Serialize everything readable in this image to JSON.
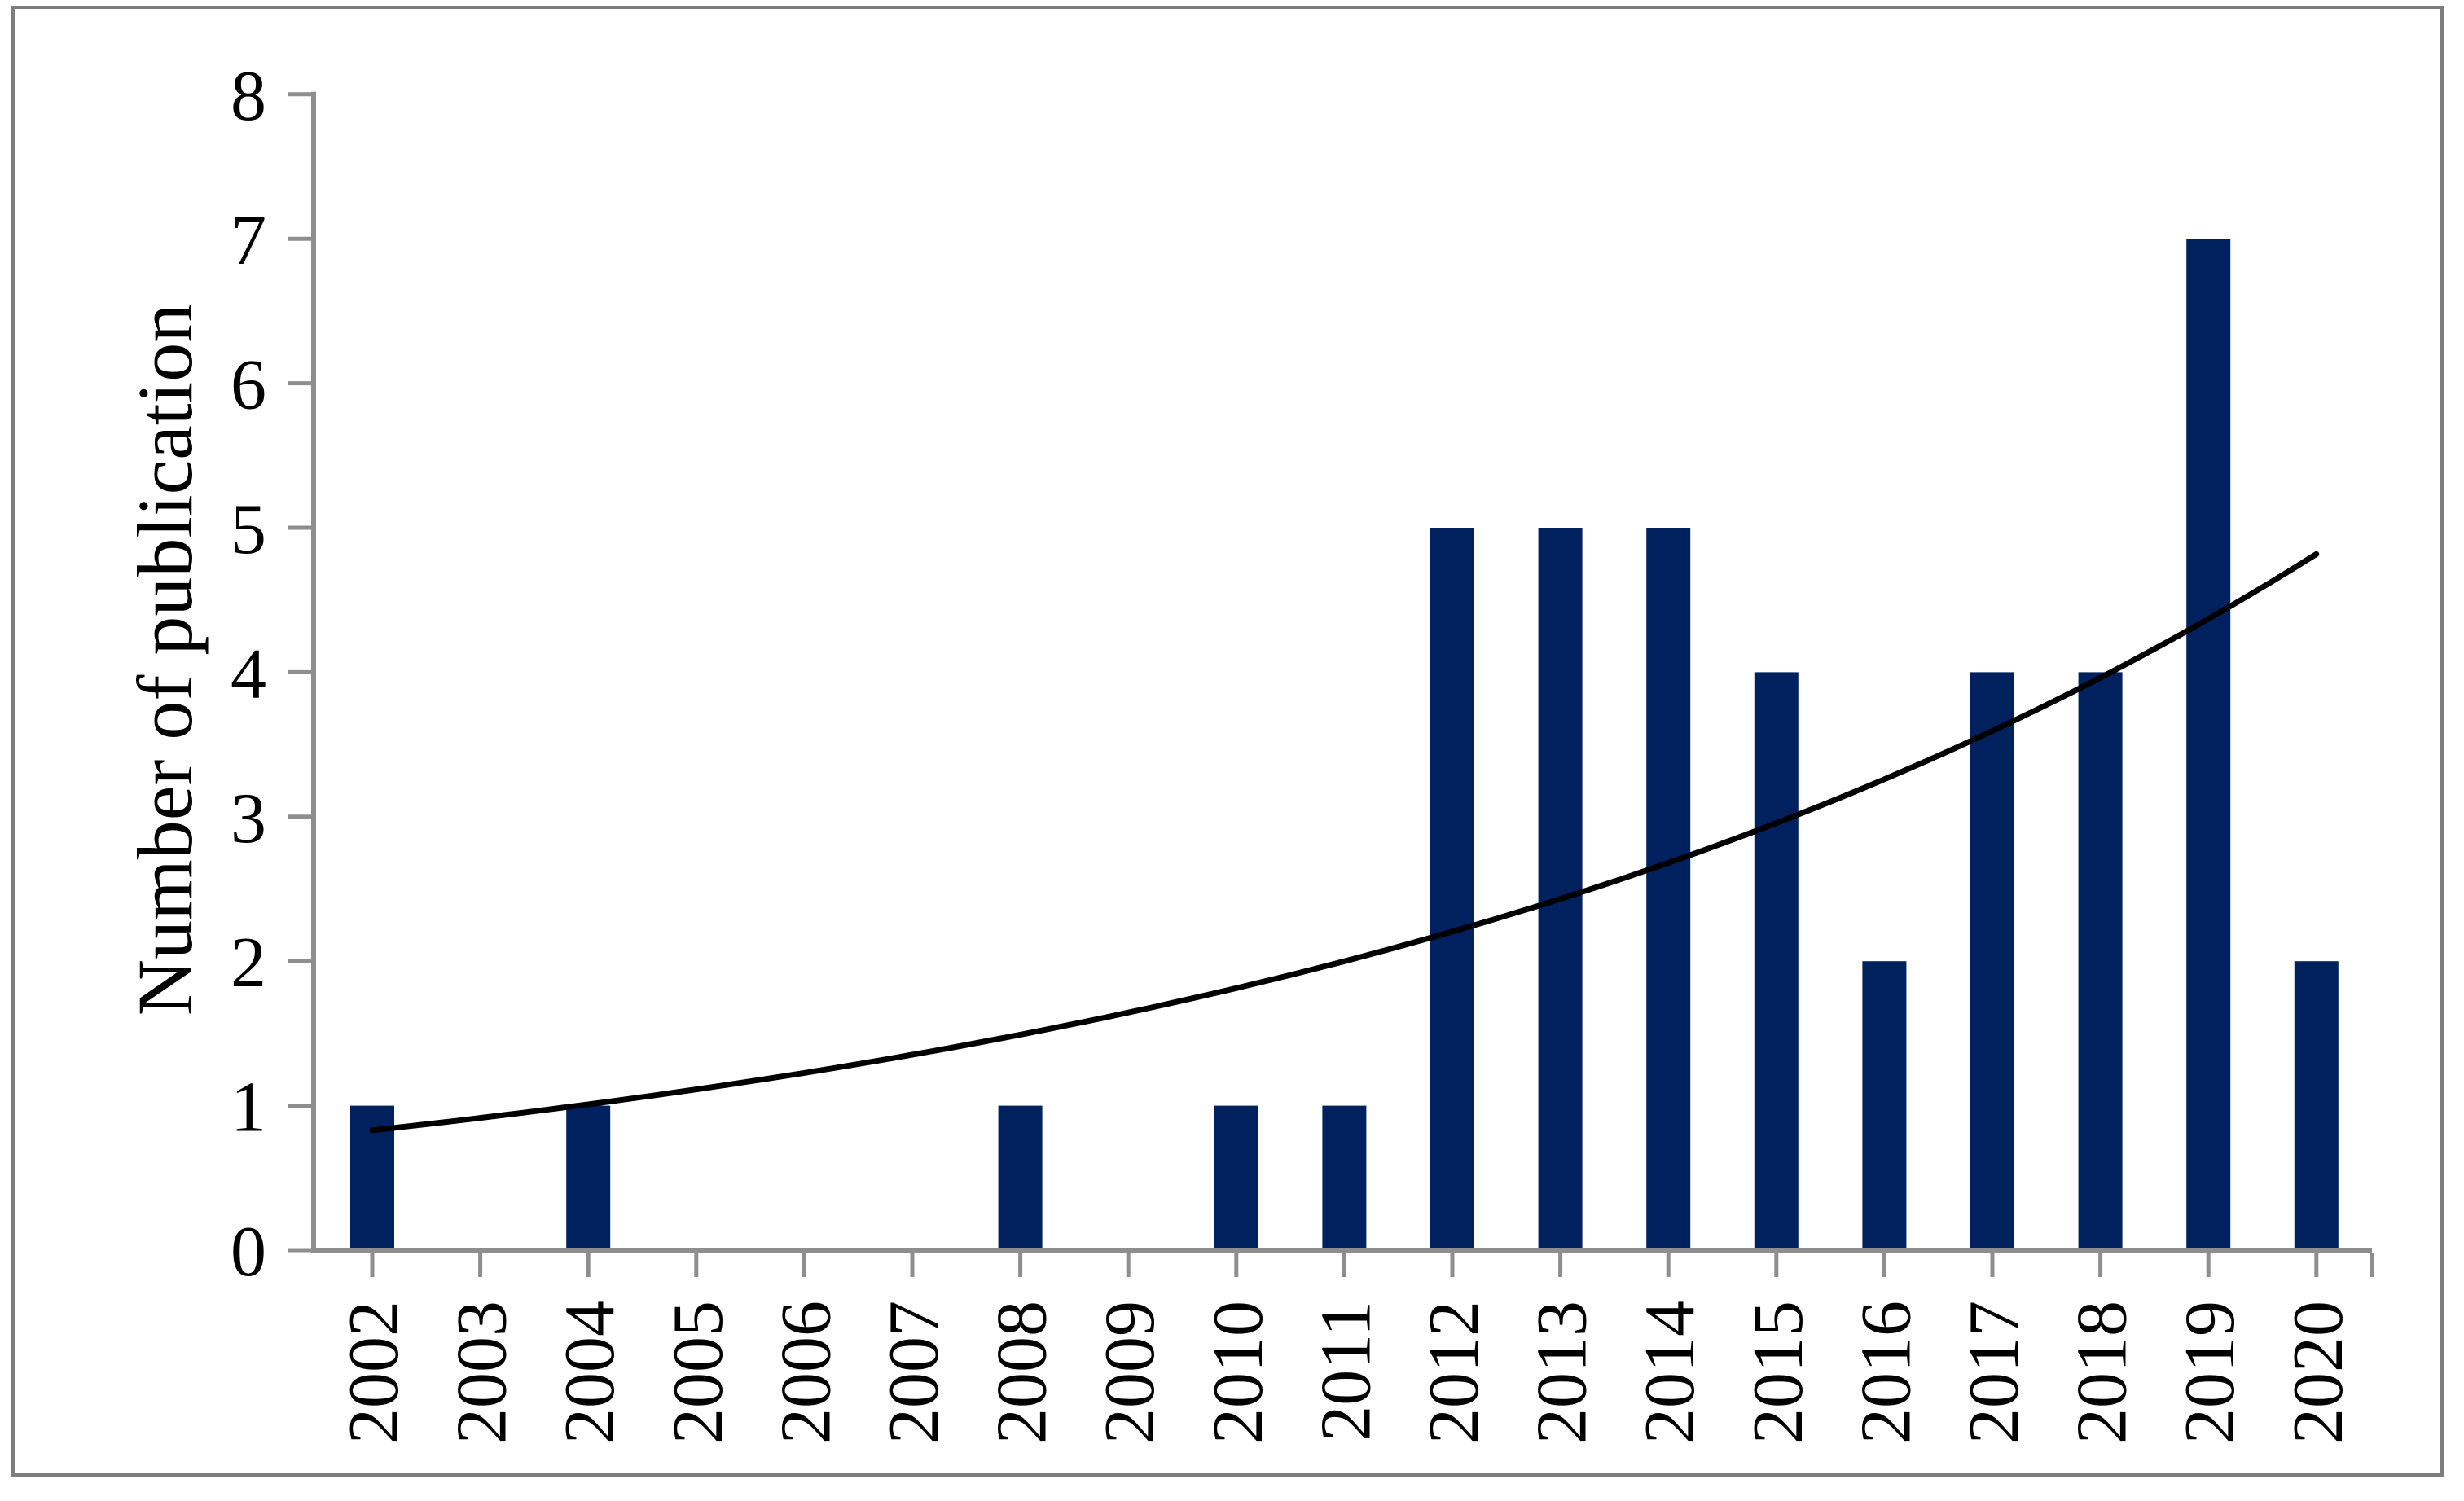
{
  "figure": {
    "background": "#ffffff",
    "border_color": "#7d7d7d",
    "description": "Bar chart of number of publications per year with exponential trendline"
  },
  "chart_data": {
    "type": "bar",
    "title": "",
    "xlabel": "",
    "ylabel": "Number of publication",
    "categories": [
      "2002",
      "2003",
      "2004",
      "2005",
      "2006",
      "2007",
      "2008",
      "2009",
      "2010",
      "2011",
      "2012",
      "2013",
      "2014",
      "2015",
      "2016",
      "2017",
      "2018",
      "2019",
      "2020"
    ],
    "values": [
      1,
      0,
      1,
      0,
      0,
      0,
      1,
      0,
      1,
      1,
      5,
      5,
      5,
      4,
      2,
      4,
      4,
      7,
      2
    ],
    "ylim": [
      0,
      8
    ],
    "yticks": [
      "0",
      "1",
      "2",
      "3",
      "4",
      "5",
      "6",
      "7",
      "8"
    ],
    "grid": false,
    "legend": "none",
    "bar_color": "#00215D",
    "axis_color": "#8E8E8E",
    "text_color": "#000000",
    "trendline": {
      "type": "exponential",
      "color": "#000000",
      "start_value": 0.83,
      "end_value": 4.8,
      "growth_per_year": 0.0977,
      "x_start": "2002",
      "x_end": "2020"
    }
  }
}
